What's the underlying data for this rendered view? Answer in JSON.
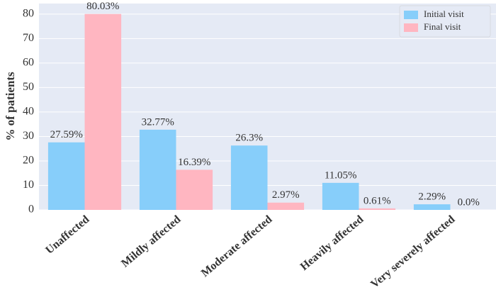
{
  "chart_data": {
    "type": "bar",
    "categories": [
      "Unaffected",
      "Mildly affected",
      "Moderate affected",
      "Heavily affected",
      "Very severely affected"
    ],
    "series": [
      {
        "name": "Initial visit",
        "color": "#87cefa",
        "values": [
          27.59,
          32.77,
          26.3,
          11.05,
          2.29
        ],
        "value_labels": [
          "27.59%",
          "32.77%",
          "26.3%",
          "11.05%",
          "2.29%"
        ]
      },
      {
        "name": "Final visit",
        "color": "#ffb6c1",
        "values": [
          80.03,
          16.39,
          2.97,
          0.61,
          0.0
        ],
        "value_labels": [
          "80.03%",
          "16.39%",
          "2.97%",
          "0.61%",
          "0.0%"
        ]
      }
    ],
    "y_label": "% of patients",
    "ylim": [
      0,
      84.3
    ],
    "yticks": [
      0,
      10,
      20,
      30,
      40,
      50,
      60,
      70,
      80
    ],
    "grid": true,
    "legend": "upper-right"
  }
}
